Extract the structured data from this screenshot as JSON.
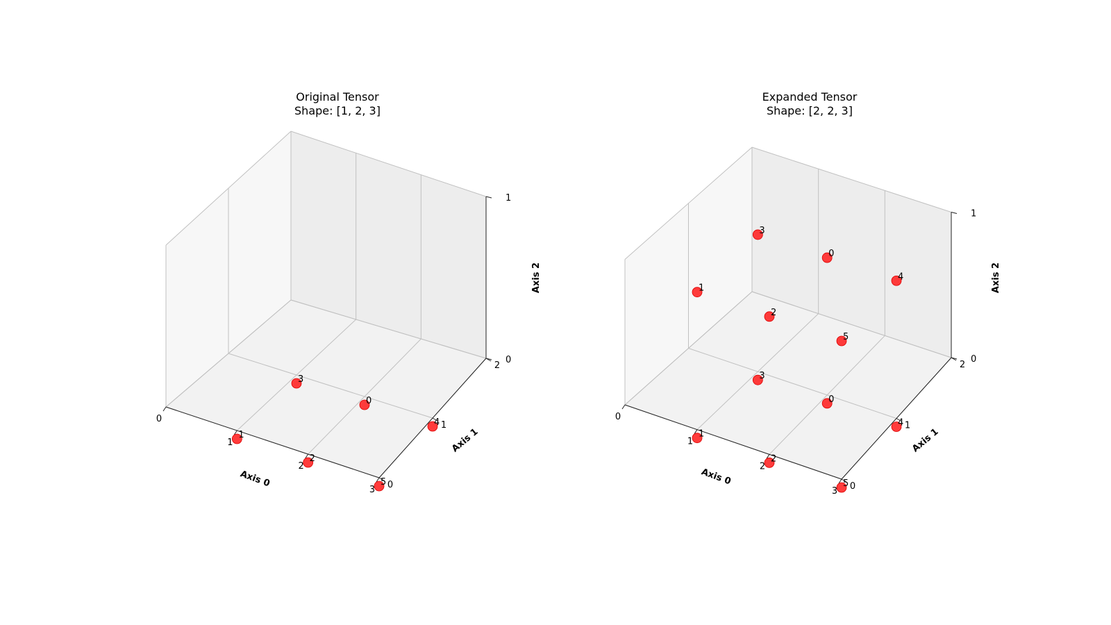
{
  "colors": {
    "point": "#ff1a1a",
    "point_alpha": 0.85,
    "pane_floor": "#f2f2f2",
    "pane_back": "#ededed",
    "pane_side": "#f7f7f7",
    "grid": "#c0c0c0"
  },
  "chart_data": [
    {
      "type": "scatter",
      "projection": "3d",
      "title_line1": "Original Tensor",
      "title_line2": "Shape: [1, 2, 3]",
      "xlabel": "Axis 0",
      "ylabel": "Axis 1",
      "zlabel": "Axis 2",
      "xlim": [
        0,
        3
      ],
      "ylim": [
        0,
        2
      ],
      "zlim": [
        0,
        1
      ],
      "xticks": [
        "0",
        "1",
        "2",
        "3"
      ],
      "yticks": [
        "0",
        "1",
        "2"
      ],
      "zticks": [
        "0",
        "1"
      ],
      "grid": true,
      "points": [
        {
          "x": 1,
          "y": 0,
          "z": 0,
          "label": "1"
        },
        {
          "x": 2,
          "y": 0,
          "z": 0,
          "label": "2"
        },
        {
          "x": 3,
          "y": 0,
          "z": 0,
          "label": "5"
        },
        {
          "x": 1,
          "y": 1,
          "z": 0,
          "label": "3"
        },
        {
          "x": 2,
          "y": 1,
          "z": 0,
          "label": "0"
        },
        {
          "x": 3,
          "y": 1,
          "z": 0,
          "label": "4"
        }
      ]
    },
    {
      "type": "scatter",
      "projection": "3d",
      "title_line1": "Expanded Tensor",
      "title_line2": "Shape: [2, 2, 3]",
      "xlabel": "Axis 0",
      "ylabel": "Axis 1",
      "zlabel": "Axis 2",
      "xlim": [
        0,
        3
      ],
      "ylim": [
        0,
        2
      ],
      "zlim": [
        0,
        1
      ],
      "xticks": [
        "0",
        "1",
        "2",
        "3"
      ],
      "yticks": [
        "0",
        "1",
        "2"
      ],
      "zticks": [
        "0",
        "1"
      ],
      "grid": true,
      "points": [
        {
          "x": 1,
          "y": 0,
          "z": 0,
          "label": "1"
        },
        {
          "x": 2,
          "y": 0,
          "z": 0,
          "label": "2"
        },
        {
          "x": 3,
          "y": 0,
          "z": 0,
          "label": "5"
        },
        {
          "x": 1,
          "y": 1,
          "z": 0,
          "label": "3"
        },
        {
          "x": 2,
          "y": 1,
          "z": 0,
          "label": "0"
        },
        {
          "x": 3,
          "y": 1,
          "z": 0,
          "label": "4"
        },
        {
          "x": 1,
          "y": 0,
          "z": 1,
          "label": "1"
        },
        {
          "x": 2,
          "y": 0,
          "z": 1,
          "label": "2"
        },
        {
          "x": 3,
          "y": 0,
          "z": 1,
          "label": "5"
        },
        {
          "x": 1,
          "y": 1,
          "z": 1,
          "label": "3"
        },
        {
          "x": 2,
          "y": 1,
          "z": 1,
          "label": "0"
        },
        {
          "x": 3,
          "y": 1,
          "z": 1,
          "label": "4"
        }
      ]
    }
  ]
}
